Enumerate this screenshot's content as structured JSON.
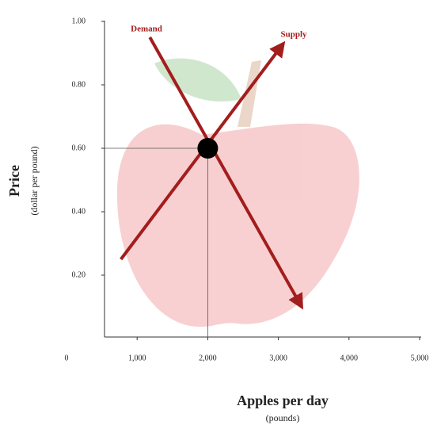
{
  "chart_data": {
    "type": "line",
    "x_label": "Apples per day",
    "x_sublabel": "(pounds)",
    "y_label": "Price",
    "y_sublabel": "(dollar per pound)",
    "xlim": [
      0,
      5000
    ],
    "xticks": [
      0,
      {
        "value": 1000,
        "label": "1,000"
      },
      {
        "value": 2000,
        "label": "2,000"
      },
      {
        "value": 3000,
        "label": "3,000"
      },
      {
        "value": 4000,
        "label": "4,000"
      },
      {
        "value": 5000,
        "label": "5,000"
      }
    ],
    "ylim": [
      0,
      1
    ],
    "yticks": [
      {
        "value": 0.2,
        "label": "0.20"
      },
      {
        "value": 0.4,
        "label": "0.40"
      },
      {
        "value": 0.6,
        "label": "0.60"
      },
      {
        "value": 0.8,
        "label": "0.80"
      },
      {
        "value": 1,
        "label": "1.00"
      }
    ],
    "series": [
      {
        "name": "Demand",
        "color": "#a31d1d",
        "x": [
          1180,
          3330
        ],
        "values": [
          0.95,
          0.1
        ]
      },
      {
        "name": "Supply",
        "color": "#a31d1d",
        "x": [
          770,
          3070
        ],
        "values": [
          0.25,
          0.93
        ]
      }
    ],
    "equilibrium": {
      "x": 2000,
      "y": 0.6,
      "color": "#000000"
    }
  }
}
